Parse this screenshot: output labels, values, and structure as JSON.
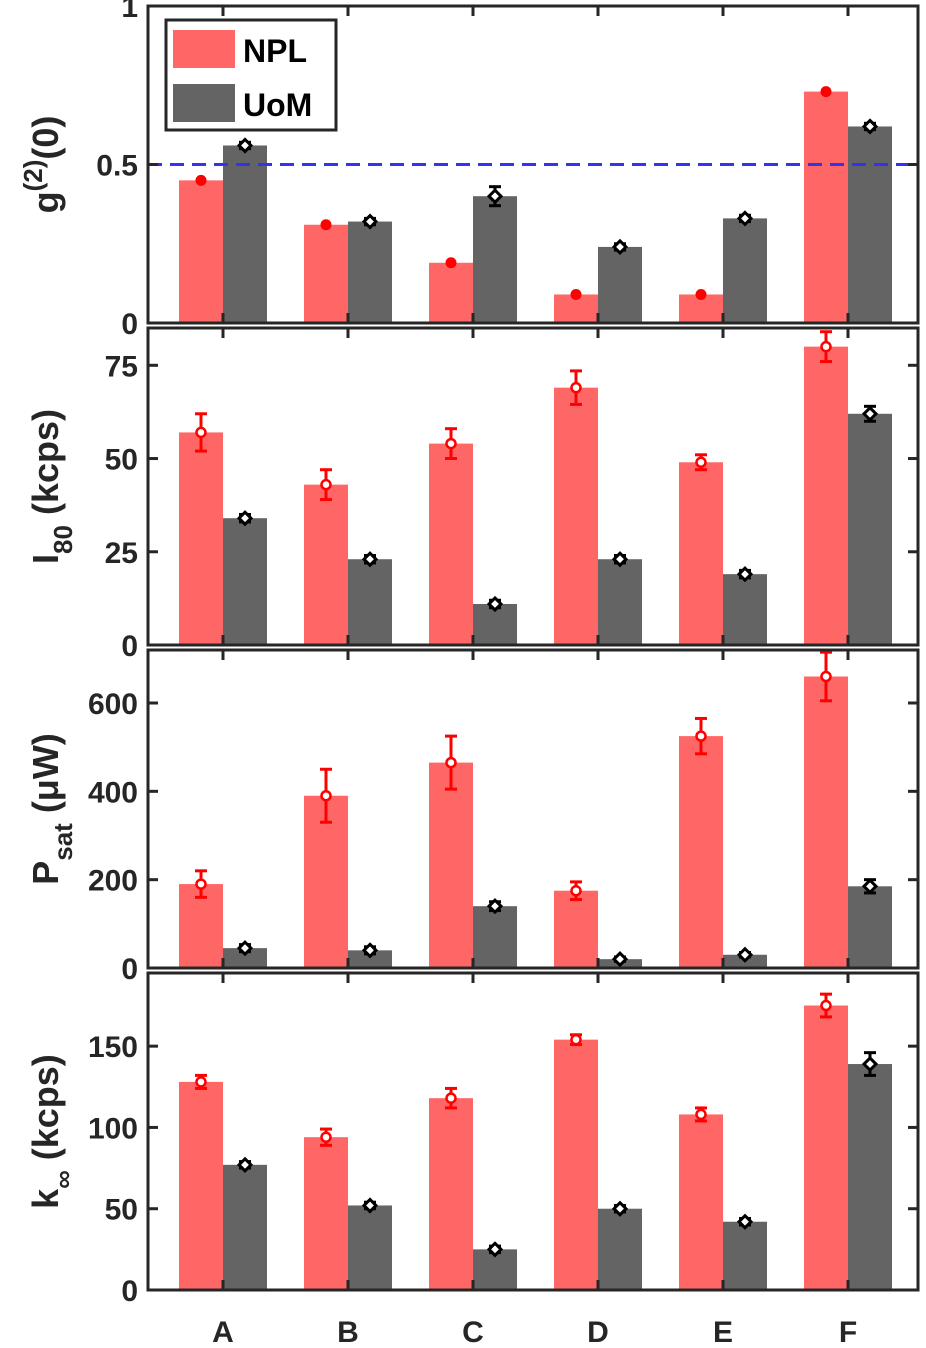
{
  "colors": {
    "npl": "#ff6666",
    "uom": "#646464",
    "npl_marker": "#ff0000",
    "uom_marker": "#000000",
    "ref_line": "#3333ee"
  },
  "legend": {
    "npl": "NPL",
    "uom": "UoM"
  },
  "chart_data": [
    {
      "type": "bar",
      "id": "g2",
      "ylabel": {
        "main": "g",
        "sup": "(2)",
        "tail": "(0)"
      },
      "ylim": [
        0,
        1.0
      ],
      "yticks": [
        0,
        0.5,
        1
      ],
      "ytick_labels": [
        "0",
        "0.5",
        "1"
      ],
      "categories": [
        "A",
        "B",
        "C",
        "D",
        "E",
        "F"
      ],
      "reference_line": 0.5,
      "series": [
        {
          "name": "NPL",
          "values": [
            0.45,
            0.31,
            0.19,
            0.09,
            0.09,
            0.73
          ],
          "errors": [
            0,
            0,
            0,
            0,
            0,
            0
          ],
          "marker": "filled"
        },
        {
          "name": "UoM",
          "values": [
            0.56,
            0.32,
            0.4,
            0.24,
            0.33,
            0.62
          ],
          "errors": [
            0.01,
            0.01,
            0.03,
            0.01,
            0.01,
            0.01
          ],
          "marker": "diamond"
        }
      ]
    },
    {
      "type": "bar",
      "id": "i80",
      "ylabel": {
        "main": "I",
        "sub": "80",
        "tail": " (kcps)"
      },
      "ylim": [
        0,
        85
      ],
      "yticks": [
        0,
        25,
        50,
        75
      ],
      "ytick_labels": [
        "0",
        "25",
        "50",
        "75"
      ],
      "categories": [
        "A",
        "B",
        "C",
        "D",
        "E",
        "F"
      ],
      "series": [
        {
          "name": "NPL",
          "values": [
            57,
            43,
            54,
            69,
            49,
            80
          ],
          "errors": [
            5,
            4,
            4,
            4.5,
            2,
            4
          ],
          "marker": "open"
        },
        {
          "name": "UoM",
          "values": [
            34,
            23,
            11,
            23,
            19,
            62
          ],
          "errors": [
            1,
            1,
            1,
            1,
            1,
            2
          ],
          "marker": "diamond"
        }
      ]
    },
    {
      "type": "bar",
      "id": "psat",
      "ylabel": {
        "main": "P",
        "sub": "sat",
        "tail": " (μW)"
      },
      "ylim": [
        0,
        720
      ],
      "yticks": [
        0,
        200,
        400,
        600
      ],
      "ytick_labels": [
        "0",
        "200",
        "400",
        "600"
      ],
      "categories": [
        "A",
        "B",
        "C",
        "D",
        "E",
        "F"
      ],
      "series": [
        {
          "name": "NPL",
          "values": [
            190,
            390,
            465,
            175,
            525,
            660
          ],
          "errors": [
            30,
            60,
            60,
            20,
            40,
            55
          ],
          "marker": "open"
        },
        {
          "name": "UoM",
          "values": [
            45,
            40,
            140,
            20,
            30,
            185
          ],
          "errors": [
            8,
            8,
            10,
            5,
            5,
            15
          ],
          "marker": "diamond"
        }
      ]
    },
    {
      "type": "bar",
      "id": "kinf",
      "ylabel": {
        "main": "k",
        "sub": "∞",
        "tail": " (kcps)"
      },
      "ylim": [
        0,
        195
      ],
      "yticks": [
        0,
        50,
        100,
        150
      ],
      "ytick_labels": [
        "0",
        "50",
        "100",
        "150"
      ],
      "categories": [
        "A",
        "B",
        "C",
        "D",
        "E",
        "F"
      ],
      "series": [
        {
          "name": "NPL",
          "values": [
            128,
            94,
            118,
            154,
            108,
            175
          ],
          "errors": [
            4,
            5,
            6,
            3,
            4,
            7
          ],
          "marker": "open"
        },
        {
          "name": "UoM",
          "values": [
            77,
            52,
            25,
            50,
            42,
            139
          ],
          "errors": [
            2,
            2,
            2,
            2,
            2,
            7
          ],
          "marker": "diamond"
        }
      ]
    }
  ]
}
